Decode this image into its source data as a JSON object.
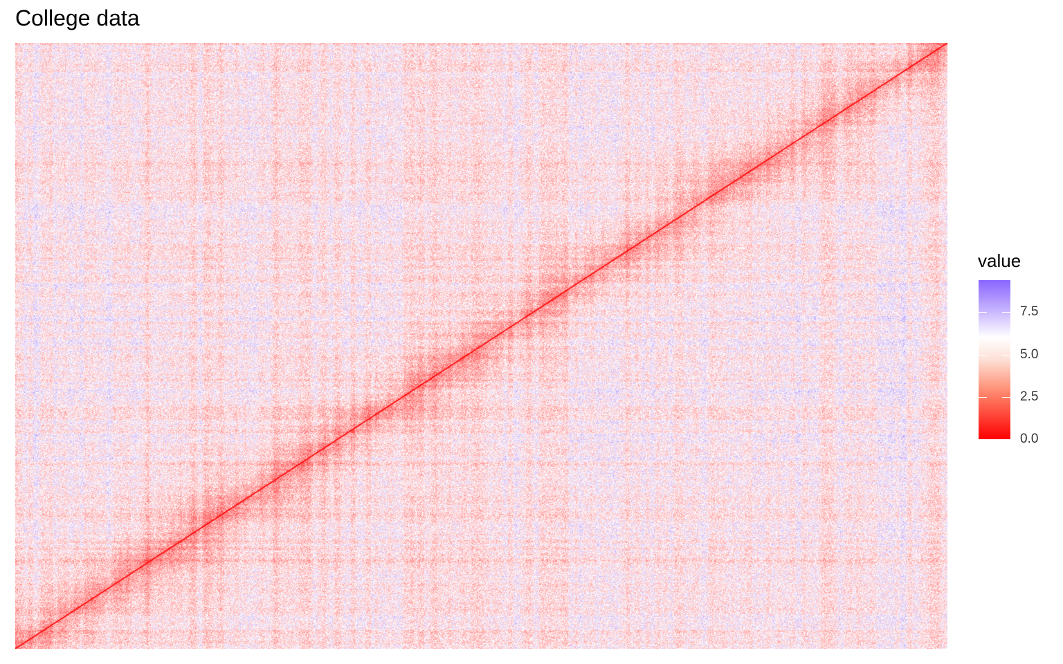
{
  "chart_data": {
    "type": "heatmap",
    "title": "College data",
    "xlabel": "",
    "ylabel": "",
    "matrix": "square distance matrix (~777 x 777) with zero diagonal running bottom-left to top-right",
    "diagonal_value": 0.0,
    "value_range": [
      0,
      9.4
    ],
    "color_scale": {
      "low": "#ff0000",
      "mid": "#ffffff",
      "high": "#8866ff",
      "midpoint": 6.1
    },
    "legend": {
      "title": "value",
      "ticks": [
        {
          "value": 7.5,
          "label": "7.5"
        },
        {
          "value": 5.0,
          "label": "5.0"
        },
        {
          "value": 2.5,
          "label": "2.5"
        },
        {
          "value": 0.0,
          "label": "0.0"
        }
      ],
      "placement": "right"
    }
  }
}
